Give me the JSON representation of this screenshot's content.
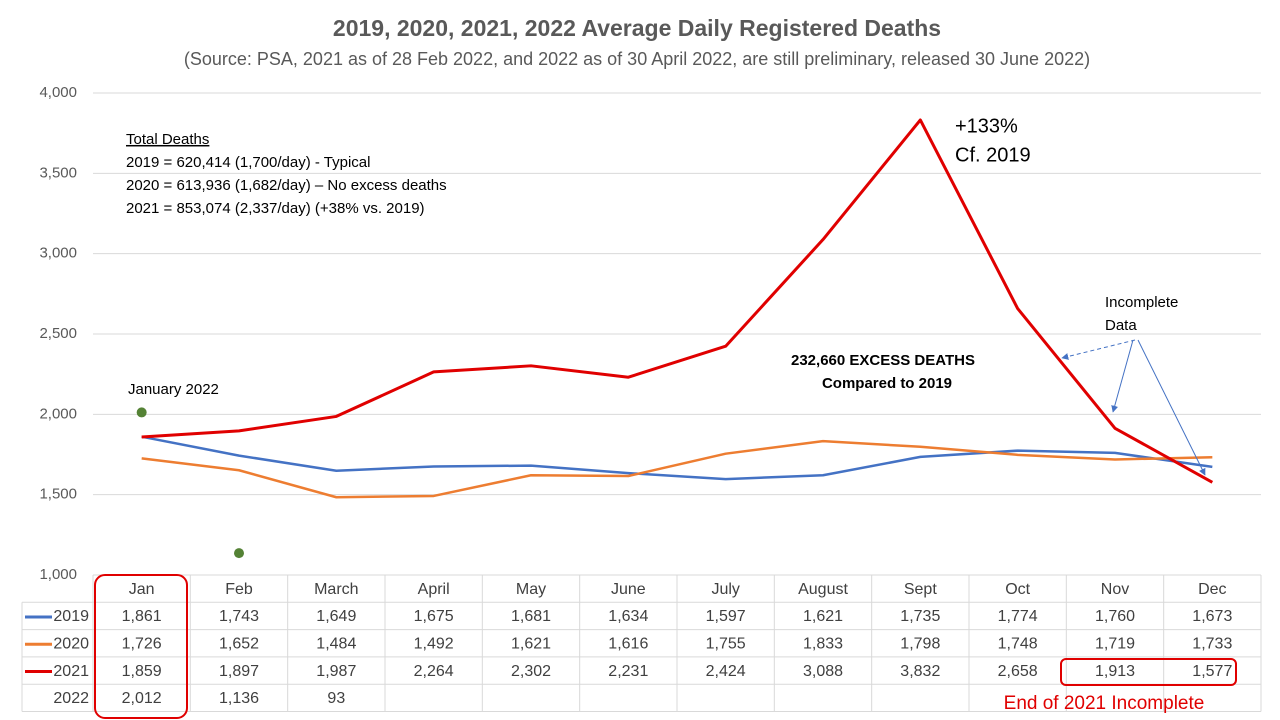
{
  "chart_data": {
    "type": "line",
    "title": "2019, 2020, 2021, 2022 Average Daily Registered Deaths",
    "subtitle": "(Source: PSA, 2021 as of 28 Feb 2022, and 2022 as of 30 April 2022, are still preliminary, released 30 June 2022)",
    "categories": [
      "Jan",
      "Feb",
      "March",
      "April",
      "May",
      "June",
      "July",
      "August",
      "Sept",
      "Oct",
      "Nov",
      "Dec"
    ],
    "ylim": [
      1000,
      4000
    ],
    "yticks": [
      {
        "value": 1000,
        "label": "1,000"
      },
      {
        "value": 1500,
        "label": "1,500"
      },
      {
        "value": 2000,
        "label": "2,000"
      },
      {
        "value": 2500,
        "label": "2,500"
      },
      {
        "value": 3000,
        "label": "3,000"
      },
      {
        "value": 3500,
        "label": "3,500"
      },
      {
        "value": 4000,
        "label": "4,000"
      }
    ],
    "grid": true,
    "series": [
      {
        "name": "2019",
        "color": "#4472c4",
        "mark": "line",
        "values": [
          1861,
          1743,
          1649,
          1675,
          1681,
          1634,
          1597,
          1621,
          1735,
          1774,
          1760,
          1673
        ],
        "value_labels": [
          "1,861",
          "1,743",
          "1,649",
          "1,675",
          "1,681",
          "1,634",
          "1,597",
          "1,621",
          "1,735",
          "1,774",
          "1,760",
          "1,673"
        ]
      },
      {
        "name": "2020",
        "color": "#ed7d31",
        "mark": "line",
        "values": [
          1726,
          1652,
          1484,
          1492,
          1621,
          1616,
          1755,
          1833,
          1798,
          1748,
          1719,
          1733
        ],
        "value_labels": [
          "1,726",
          "1,652",
          "1,484",
          "1,492",
          "1,621",
          "1,616",
          "1,755",
          "1,833",
          "1,798",
          "1,748",
          "1,719",
          "1,733"
        ]
      },
      {
        "name": "2021",
        "color": "#e00000",
        "mark": "line",
        "values": [
          1859,
          1897,
          1987,
          2264,
          2302,
          2231,
          2424,
          3088,
          3832,
          2658,
          1913,
          1577
        ],
        "value_labels": [
          "1,859",
          "1,897",
          "1,987",
          "2,264",
          "2,302",
          "2,231",
          "2,424",
          "3,088",
          "3,832",
          "2,658",
          "1,913",
          "1,577"
        ]
      },
      {
        "name": "2022",
        "color": "#548235",
        "mark": "points",
        "values": [
          2012,
          1136,
          93,
          null,
          null,
          null,
          null,
          null,
          null,
          null,
          null,
          null
        ],
        "value_labels": [
          "2,012",
          "1,136",
          "93",
          null,
          null,
          null,
          null,
          null,
          null,
          null,
          null,
          null
        ]
      }
    ],
    "annotations": {
      "total_deaths": {
        "heading": "Total Deaths",
        "lines": [
          "2019 = 620,414 (1,700/day) - Typical",
          "2020 = 613,936 (1,682/day) – No excess deaths",
          "2021 = 853,074 (2,337/day) (+38% vs. 2019)"
        ]
      },
      "peak": [
        "+133%",
        "Cf. 2019"
      ],
      "incomplete": [
        "Incomplete",
        "Data"
      ],
      "excess": [
        "232,660 EXCESS DEATHS",
        "Compared to 2019"
      ],
      "january_2022": "January 2022",
      "end_incomplete": "End of 2021 Incomplete"
    }
  }
}
